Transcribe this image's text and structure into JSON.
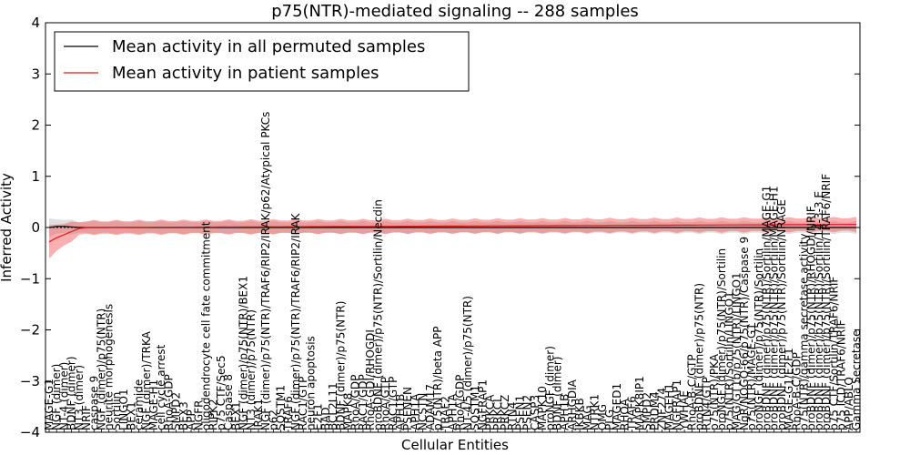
{
  "chart_data": {
    "type": "line",
    "title": "p75(NTR)-mediated signaling -- 288 samples",
    "xlabel": "Cellular Entities",
    "ylabel": "Inferred Activity",
    "ylim": [
      -4,
      4
    ],
    "yticks": [
      -4,
      -3,
      -2,
      -1,
      0,
      1,
      2,
      3,
      4
    ],
    "ytick_labels": [
      "−4",
      "−3",
      "−2",
      "−1",
      "0",
      "1",
      "2",
      "3",
      "4"
    ],
    "legend_position": "top-left",
    "series": [
      {
        "name": "Mean activity in all permuted samples",
        "color": "#000000"
      },
      {
        "name": "Mean activity in patient samples",
        "color": "#e31a1c"
      }
    ],
    "categories": [
      "MAGE-G1",
      "NGF (dimer)",
      "NT-4 (dimer)",
      "BDNF (dimer)",
      "NT3 (dimer)",
      "NRIF",
      "caspase 9",
      "NGF (dimer)/p75(NTR)",
      "neurite morphogenesis",
      "Sortilin",
      "LINGO1",
      "BEX1",
      "ceramide",
      "NGF (dimer)/TRKA",
      "MAGE-H1",
      "cell cycle arrest",
      "RhoA-GDP",
      "SMPD2",
      "BEX3",
      "APP",
      "NGFR",
      "oligodendrocyte cell fate commitment",
      "RIPK2",
      "p75 CTF/Sec5",
      "Caspase 8",
      "BEX1",
      "NGF (dimer)/p75(NTR)/BEX1",
      "NT3 (dimer)/p75(NTR)",
      "IRAK1",
      "NGF (dimer)/p75(NTR)/TRAF6/RIP2/IRAK/p62/Atypical PKCs",
      "p62",
      "SQSTM1",
      "TRAF6",
      "NGF (dimer)/p75(NTR)/TRAF6/RIP2/IRAK",
      "RAC1/GTP",
      "neuron apoptosis",
      "E2F1",
      "BAD",
      "BCL2L11",
      "BDNF (dimer)/p75(NTR)",
      "MAPK8",
      "RhoA/GDP",
      "RAC1/GDP",
      "RhoA-GDI/RHOGDI",
      "proBDNF (dimer)/p75(NTR)/Sortilin/Necdin",
      "RhoA/GTP",
      "RAC1/GTP",
      "APH1B",
      "PSENEN",
      "APH1A",
      "NCSTN",
      "ADAM17",
      "p75(NTR)/beta APP",
      "TRAF2",
      "APH1A",
      "RhoA/GDP",
      "NT-4/5 (dimer)/p75(NTR)",
      "SQSTM1",
      "NGFRAP1",
      "PRKCA",
      "PRKCI",
      "PRKCZ",
      "RTN4",
      "PSEN1",
      "PSEN2",
      "CASP3",
      "MAPK10",
      "proNGF (dimer)",
      "BDNF (dimer)",
      "APH1B",
      "ARHGDIA",
      "IKBKB",
      "MAG",
      "NTRK1",
      "OMG",
      "PLG",
      "MAGED1",
      "RHOA",
      "TRAF6",
      "MAPK8IP1",
      "SMPD2",
      "PRDM4",
      "ZNF274",
      "MAGEH1",
      "NGFRAP1",
      "YWHAE",
      "RhoA-B-C/GTP",
      "proBDNF (dimer)/p75(NTR)",
      "RTN4/GTP",
      "p75(NTR)/PKA",
      "proNGF (dimer)/p75(NTR)/Sortilin",
      "p75(NTR)/Sortilin/LINGO1",
      "MAG/GT1b/p75(NTR)/LINGO1",
      "NgR/NOGO-66/p75(NTR)/Caspase 9",
      "p75(NTR)/MAGE-G1",
      "proNGF (dimer)/p75(NTR)/Sortilin",
      "proBDNF (dimer)/p75(NTR)/Sortilin/MAGE-G1",
      "proBDNF (dimer)/p75(NTR)/Sortilin/MAGE-H1",
      "proBDNF (dimer)/p75(NTR)/Sortilin/NRAGE",
      "MAGE-G1/E2F1",
      "RhoA-B-C/GDP",
      "p75(NTR)/gamma secretase activity",
      "proBDNF (dimer)/p75(NTR)/RHOGDI/NRIF",
      "proBDNF (dimer)/p75(NTR)/Sortilin/14-3-3 E",
      "proBDNF (dimer)/p75(NTR)/Sortilin/TRAF6/NRIF",
      "p75 CTF/Sortilin/TRAF6/NRIF",
      "p75 ICD/TRAF6/NRIF",
      "APP/ABLO",
      "Gamma Secretase"
    ],
    "permuted_mean": [
      0.0,
      0.02,
      0.02,
      0.01,
      0.0,
      0.0,
      0.0,
      0.0,
      0.0
    ],
    "patient_mean_start": [
      -0.28,
      -0.2,
      -0.14,
      -0.08,
      -0.02,
      0.0
    ],
    "patient_mean_end": 0.06,
    "band_permuted": 0.1,
    "band_patient": 0.12
  }
}
